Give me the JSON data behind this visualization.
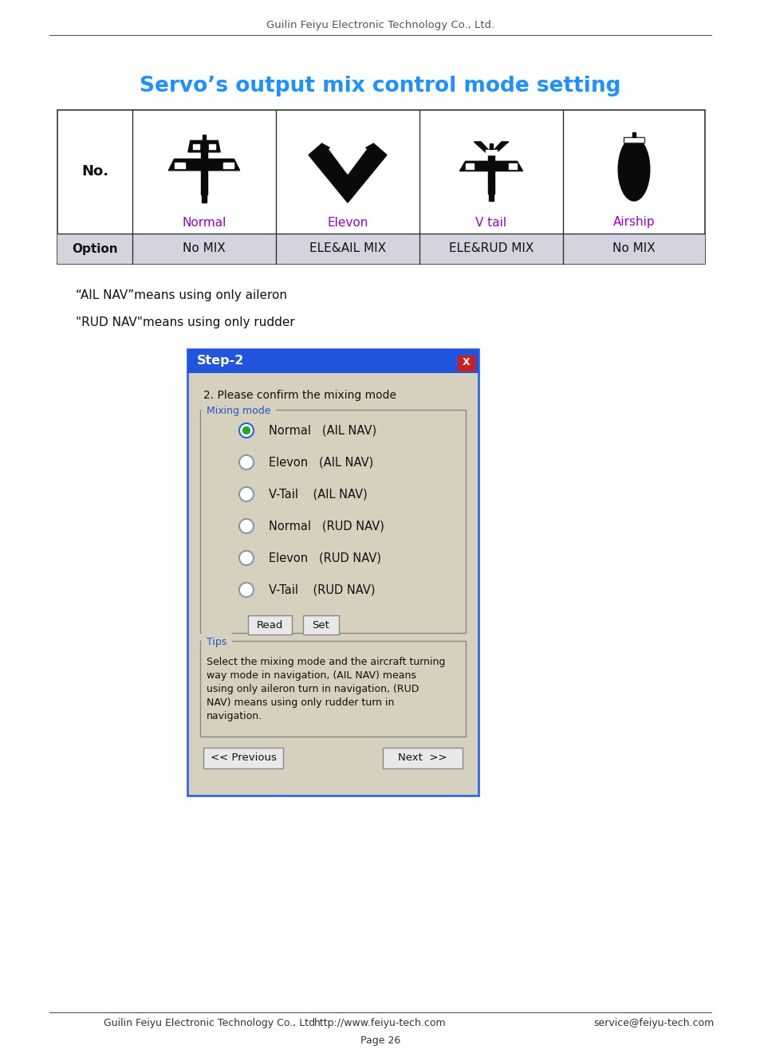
{
  "page_header": "Guilin Feiyu Electronic Technology Co., Ltd.",
  "title": "Servo’s output mix control mode setting",
  "title_color": "#1e90ff",
  "table_headers": [
    "No.",
    "Normal",
    "Elevon",
    "V tail",
    "Airship"
  ],
  "table_header_color": "#9900cc",
  "option_row": [
    "Option",
    "No MIX",
    "ELE&AIL MIX",
    "ELE&RUD MIX",
    "No MIX"
  ],
  "option_row_bg": "#d8d8e8",
  "note1": "“AIL NAV”means using only aileron",
  "note2": "\"RUD NAV\"means using only rudder",
  "dialog_title": "Step-2",
  "dialog_title_color": "#ffffff",
  "dialog_title_bg": "#2255dd",
  "dialog_bg": "#d6d0be",
  "dialog_text": "2. Please confirm the mixing mode",
  "mixing_mode_label": "Mixing mode",
  "mixing_mode_label_color": "#2255cc",
  "radio_options": [
    "Normal   (AIL NAV)",
    "Elevon   (AIL NAV)",
    "V-Tail    (AIL NAV)",
    "Normal   (RUD NAV)",
    "Elevon   (RUD NAV)",
    "V-Tail    (RUD NAV)"
  ],
  "tips_label": "Tips",
  "tips_label_color": "#2255cc",
  "tips_text": "Select the mixing mode and the aircraft turning\nway mode in navigation, (AIL NAV) means\nusing only aileron turn in navigation, (RUD\nNAV) means using only rudder turn in\nnavigation.",
  "footer_left": "Guilin Feiyu Electronic Technology Co., Ltd",
  "footer_mid": "http://www.feiyu-tech.com",
  "footer_right": "service@feiyu-tech.com",
  "footer_page": "Page 26",
  "bg_color": "#ffffff"
}
